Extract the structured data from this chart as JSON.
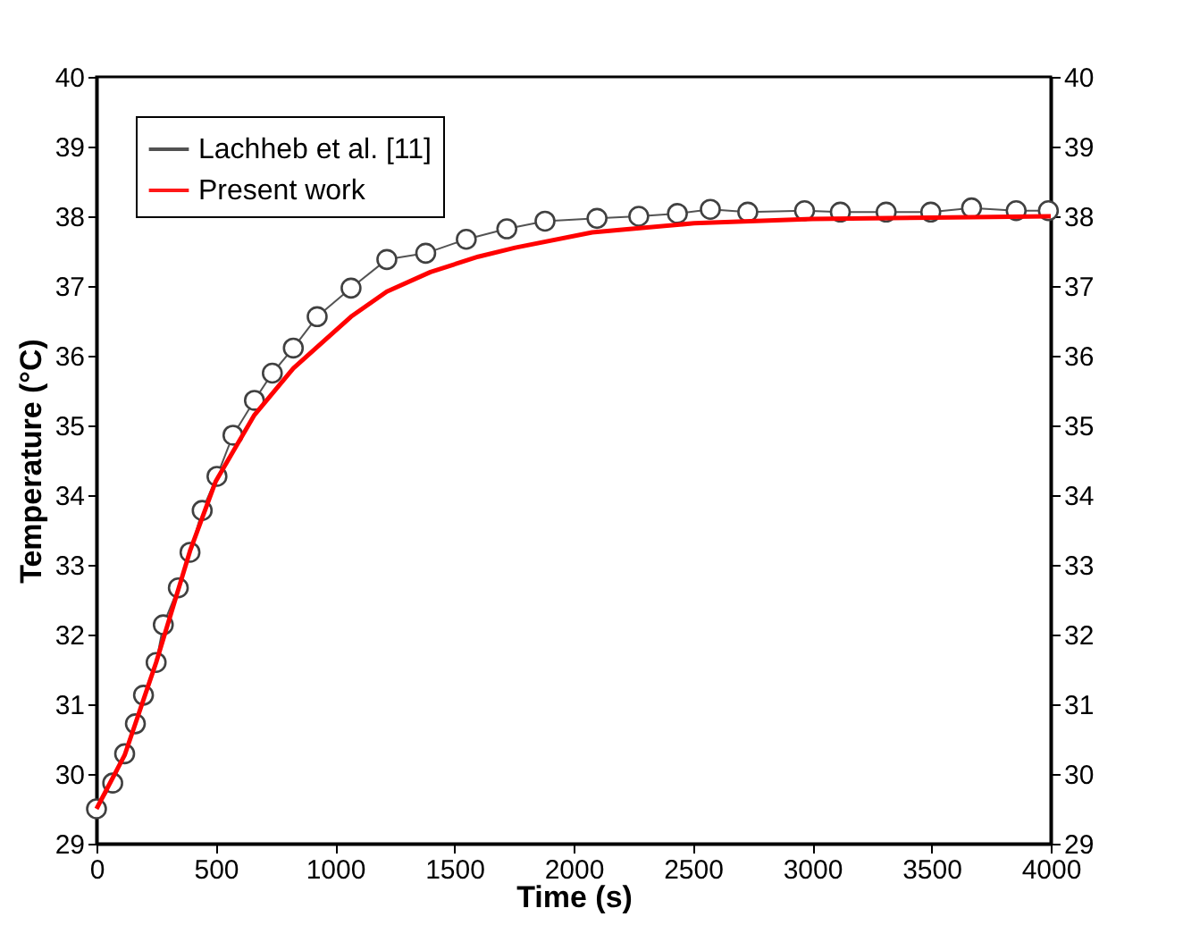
{
  "chart_data": {
    "type": "line",
    "xlabel": "Time (s)",
    "ylabel": "Temperature (°C)",
    "xlim": [
      0,
      4000
    ],
    "xticks": [
      0,
      500,
      1000,
      1500,
      2000,
      2500,
      3000,
      3500,
      4000
    ],
    "ylim": [
      29,
      40
    ],
    "yticks": [
      29,
      30,
      31,
      32,
      33,
      34,
      35,
      36,
      37,
      38,
      39,
      40
    ],
    "y2lim": [
      29,
      40
    ],
    "y2ticks": [
      29,
      30,
      31,
      32,
      33,
      34,
      35,
      36,
      37,
      38,
      39,
      40
    ],
    "legend": "top left",
    "grid": false,
    "series": [
      {
        "name": "Lachheb et al. [11]",
        "color": "#404040",
        "marker": "circle",
        "x": [
          0,
          68,
          118,
          163,
          197,
          250,
          280,
          343,
          392,
          443,
          505,
          572,
          662,
          737,
          825,
          925,
          1067,
          1217,
          1380,
          1550,
          1720,
          1880,
          2098,
          2273,
          2435,
          2573,
          2730,
          2968,
          3118,
          3310,
          3497,
          3668,
          3855,
          3990
        ],
        "values": [
          29.5,
          29.87,
          30.29,
          30.72,
          31.13,
          31.6,
          32.14,
          32.67,
          33.18,
          33.78,
          34.27,
          34.86,
          35.36,
          35.75,
          36.11,
          36.56,
          36.97,
          37.38,
          37.47,
          37.67,
          37.82,
          37.93,
          37.97,
          38.0,
          38.04,
          38.1,
          38.06,
          38.08,
          38.06,
          38.06,
          38.06,
          38.12,
          38.08,
          38.08
        ]
      },
      {
        "name": "Present work",
        "color": "#ff0000",
        "marker": "none",
        "x": [
          0,
          118,
          250,
          392,
          500,
          662,
          825,
          1067,
          1217,
          1400,
          1600,
          1755,
          2078,
          2505,
          3000,
          3500,
          4000
        ],
        "values": [
          29.5,
          30.27,
          31.6,
          33.2,
          34.2,
          35.15,
          35.82,
          36.56,
          36.92,
          37.2,
          37.42,
          37.55,
          37.77,
          37.9,
          37.96,
          37.98,
          38.0
        ]
      }
    ]
  }
}
